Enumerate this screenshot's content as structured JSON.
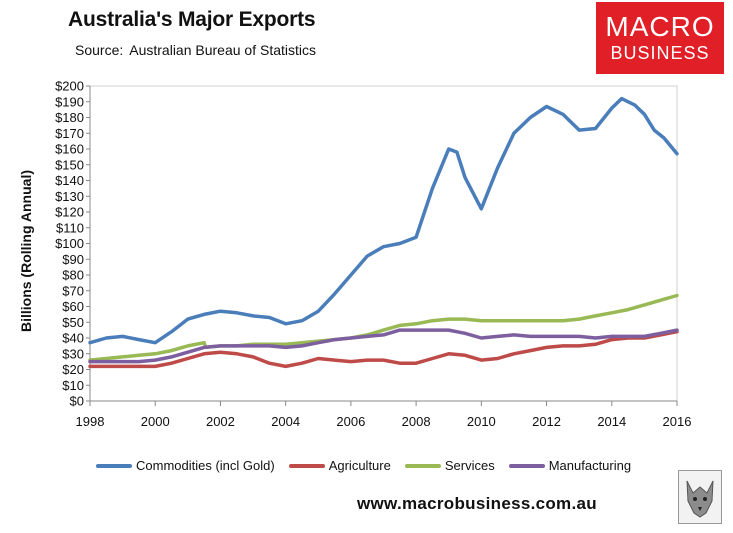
{
  "title": "Australia's Major Exports",
  "source_label": "Source:",
  "source_value": "Australian Bureau of Statistics",
  "logo": {
    "top": "MACRO",
    "bottom": "BUSINESS"
  },
  "website": "www.macrobusiness.com.au",
  "colors": {
    "commodities": "#4a7ebb",
    "agriculture": "#be4b48",
    "services": "#98b954",
    "manufacturing": "#7d5fa0",
    "brand": "#e01f26"
  },
  "chart_data": {
    "type": "line",
    "title": "Australia's Major Exports",
    "xlabel": "",
    "ylabel": "Billions (Rolling Annual)",
    "xlim": [
      1998,
      2016
    ],
    "ylim": [
      0,
      200
    ],
    "x_ticks": [
      "1998",
      "2000",
      "2002",
      "2004",
      "2006",
      "2008",
      "2010",
      "2012",
      "2014",
      "2016"
    ],
    "y_ticks": [
      "$0",
      "$10",
      "$20",
      "$30",
      "$40",
      "$50",
      "$60",
      "$70",
      "$80",
      "$90",
      "$100",
      "$110",
      "$120",
      "$130",
      "$140",
      "$150",
      "$160",
      "$170",
      "$180",
      "$190",
      "$200"
    ],
    "grid": false,
    "legend_position": "bottom",
    "series": [
      {
        "name": "Commodities (incl Gold)",
        "color": "#4a7ebb",
        "points": [
          [
            1998,
            37
          ],
          [
            1998.5,
            40
          ],
          [
            1999,
            41
          ],
          [
            1999.5,
            39
          ],
          [
            2000,
            37
          ],
          [
            2000.5,
            44
          ],
          [
            2001,
            52
          ],
          [
            2001.5,
            55
          ],
          [
            2002,
            57
          ],
          [
            2002.5,
            56
          ],
          [
            2003,
            54
          ],
          [
            2003.5,
            53
          ],
          [
            2004,
            49
          ],
          [
            2004.5,
            51
          ],
          [
            2005,
            57
          ],
          [
            2005.5,
            68
          ],
          [
            2006,
            80
          ],
          [
            2006.5,
            92
          ],
          [
            2007,
            98
          ],
          [
            2007.5,
            100
          ],
          [
            2008,
            104
          ],
          [
            2008.5,
            135
          ],
          [
            2009,
            160
          ],
          [
            2009.25,
            158
          ],
          [
            2009.5,
            142
          ],
          [
            2010,
            122
          ],
          [
            2010.5,
            148
          ],
          [
            2011,
            170
          ],
          [
            2011.5,
            180
          ],
          [
            2012,
            187
          ],
          [
            2012.5,
            182
          ],
          [
            2013,
            172
          ],
          [
            2013.5,
            173
          ],
          [
            2014,
            186
          ],
          [
            2014.3,
            192
          ],
          [
            2014.7,
            188
          ],
          [
            2015,
            182
          ],
          [
            2015.3,
            172
          ],
          [
            2015.6,
            167
          ],
          [
            2016,
            157
          ]
        ]
      },
      {
        "name": "Agriculture",
        "color": "#be4b48",
        "points": [
          [
            1998,
            22
          ],
          [
            1999,
            22
          ],
          [
            2000,
            22
          ],
          [
            2000.5,
            24
          ],
          [
            2001,
            27
          ],
          [
            2001.5,
            30
          ],
          [
            2002,
            31
          ],
          [
            2002.5,
            30
          ],
          [
            2003,
            28
          ],
          [
            2003.5,
            24
          ],
          [
            2004,
            22
          ],
          [
            2004.5,
            24
          ],
          [
            2005,
            27
          ],
          [
            2005.5,
            26
          ],
          [
            2006,
            25
          ],
          [
            2006.5,
            26
          ],
          [
            2007,
            26
          ],
          [
            2007.5,
            24
          ],
          [
            2008,
            24
          ],
          [
            2008.5,
            27
          ],
          [
            2009,
            30
          ],
          [
            2009.5,
            29
          ],
          [
            2010,
            26
          ],
          [
            2010.5,
            27
          ],
          [
            2011,
            30
          ],
          [
            2011.5,
            32
          ],
          [
            2012,
            34
          ],
          [
            2012.5,
            35
          ],
          [
            2013,
            35
          ],
          [
            2013.5,
            36
          ],
          [
            2014,
            39
          ],
          [
            2014.5,
            40
          ],
          [
            2015,
            40
          ],
          [
            2015.5,
            42
          ],
          [
            2016,
            44
          ]
        ]
      },
      {
        "name": "Services",
        "color": "#98b954",
        "points": [
          [
            1998,
            26
          ],
          [
            1998.5,
            27
          ],
          [
            1999,
            28
          ],
          [
            1999.5,
            29
          ],
          [
            2000,
            30
          ],
          [
            2000.5,
            32
          ],
          [
            2001,
            35
          ],
          [
            2001.5,
            37
          ],
          [
            2001.55,
            34
          ],
          [
            2002,
            35
          ],
          [
            2002.5,
            35
          ],
          [
            2003,
            36
          ],
          [
            2003.5,
            36
          ],
          [
            2004,
            36
          ],
          [
            2004.5,
            37
          ],
          [
            2005,
            38
          ],
          [
            2005.5,
            39
          ],
          [
            2006,
            40
          ],
          [
            2006.5,
            42
          ],
          [
            2007,
            45
          ],
          [
            2007.5,
            48
          ],
          [
            2008,
            49
          ],
          [
            2008.5,
            51
          ],
          [
            2009,
            52
          ],
          [
            2009.5,
            52
          ],
          [
            2010,
            51
          ],
          [
            2010.5,
            51
          ],
          [
            2011,
            51
          ],
          [
            2012,
            51
          ],
          [
            2012.5,
            51
          ],
          [
            2013,
            52
          ],
          [
            2013.5,
            54
          ],
          [
            2014,
            56
          ],
          [
            2014.5,
            58
          ],
          [
            2015,
            61
          ],
          [
            2015.5,
            64
          ],
          [
            2016,
            67
          ]
        ]
      },
      {
        "name": "Manufacturing",
        "color": "#7d5fa0",
        "points": [
          [
            1998,
            25
          ],
          [
            1998.5,
            25
          ],
          [
            1999,
            25
          ],
          [
            1999.5,
            25
          ],
          [
            2000,
            26
          ],
          [
            2000.5,
            28
          ],
          [
            2001,
            31
          ],
          [
            2001.5,
            34
          ],
          [
            2002,
            35
          ],
          [
            2002.5,
            35
          ],
          [
            2003,
            35
          ],
          [
            2003.5,
            35
          ],
          [
            2004,
            34
          ],
          [
            2004.5,
            35
          ],
          [
            2005,
            37
          ],
          [
            2005.5,
            39
          ],
          [
            2006,
            40
          ],
          [
            2006.5,
            41
          ],
          [
            2007,
            42
          ],
          [
            2007.5,
            45
          ],
          [
            2008,
            45
          ],
          [
            2008.5,
            45
          ],
          [
            2009,
            45
          ],
          [
            2009.5,
            43
          ],
          [
            2010,
            40
          ],
          [
            2010.5,
            41
          ],
          [
            2011,
            42
          ],
          [
            2011.5,
            41
          ],
          [
            2012,
            41
          ],
          [
            2012.5,
            41
          ],
          [
            2013,
            41
          ],
          [
            2013.5,
            40
          ],
          [
            2014,
            41
          ],
          [
            2014.5,
            41
          ],
          [
            2015,
            41
          ],
          [
            2015.5,
            43
          ],
          [
            2016,
            45
          ]
        ]
      }
    ]
  }
}
